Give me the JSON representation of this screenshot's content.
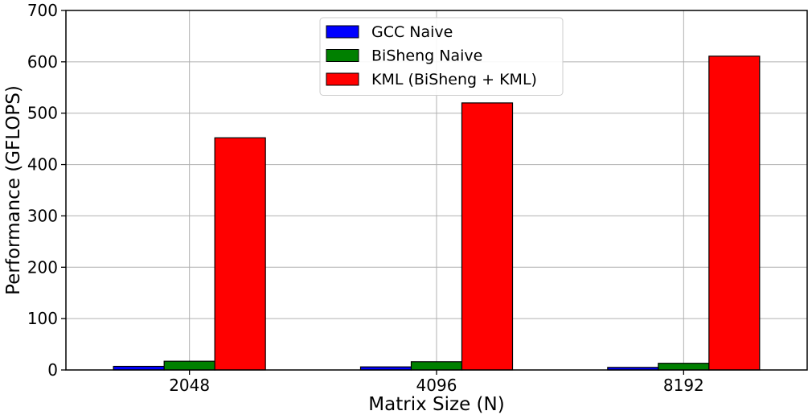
{
  "chart_data": {
    "type": "bar",
    "title": "",
    "xlabel": "Matrix Size (N)",
    "ylabel": "Performance (GFLOPS)",
    "categories": [
      "2048",
      "4096",
      "8192"
    ],
    "ylim": [
      0,
      700
    ],
    "yticks": [
      0,
      100,
      200,
      300,
      400,
      500,
      600,
      700
    ],
    "grid": true,
    "legend_position": "top-center",
    "series": [
      {
        "name": "GCC Naive",
        "color": "#0000ff",
        "values": [
          7,
          6,
          5
        ]
      },
      {
        "name": "BiSheng Naive",
        "color": "#008000",
        "values": [
          17,
          16,
          13
        ]
      },
      {
        "name": "KML (BiSheng + KML)",
        "color": "#ff0000",
        "values": [
          452,
          520,
          611
        ]
      }
    ]
  }
}
